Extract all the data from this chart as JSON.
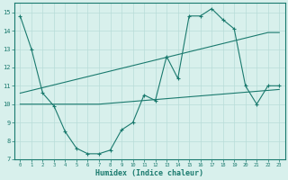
{
  "line1_x": [
    0,
    1,
    2,
    3,
    4,
    5,
    6,
    7,
    8,
    9,
    10,
    11,
    12,
    13,
    14,
    15,
    16,
    17,
    18,
    19,
    20,
    21,
    22,
    23
  ],
  "line1_y": [
    14.8,
    13.0,
    10.6,
    9.9,
    8.5,
    7.6,
    7.3,
    7.3,
    7.5,
    8.6,
    9.0,
    10.5,
    10.2,
    12.6,
    11.4,
    14.8,
    14.8,
    15.2,
    14.6,
    14.1,
    11.0,
    10.0,
    11.0,
    11.0
  ],
  "line2_y": [
    10.0,
    10.0,
    10.0,
    10.0,
    10.0,
    10.0,
    10.0,
    10.0,
    10.05,
    10.1,
    10.15,
    10.2,
    10.25,
    10.3,
    10.35,
    10.4,
    10.45,
    10.5,
    10.55,
    10.6,
    10.65,
    10.7,
    10.75,
    10.8
  ],
  "line3_y": [
    10.6,
    10.75,
    10.9,
    11.05,
    11.2,
    11.35,
    11.5,
    11.65,
    11.8,
    11.95,
    12.1,
    12.25,
    12.4,
    12.55,
    12.7,
    12.85,
    13.0,
    13.15,
    13.3,
    13.45,
    13.6,
    13.75,
    13.9,
    13.9
  ],
  "line_color": "#1a7a6e",
  "bg_color": "#d8f0ec",
  "grid_color": "#b8dcd8",
  "xlabel": "Humidex (Indice chaleur)",
  "ylim": [
    7,
    15.5
  ],
  "xlim_min": -0.5,
  "xlim_max": 23.5,
  "yticks": [
    7,
    8,
    9,
    10,
    11,
    12,
    13,
    14,
    15
  ],
  "xticks": [
    0,
    1,
    2,
    3,
    4,
    5,
    6,
    7,
    8,
    9,
    10,
    11,
    12,
    13,
    14,
    15,
    16,
    17,
    18,
    19,
    20,
    21,
    22,
    23
  ]
}
